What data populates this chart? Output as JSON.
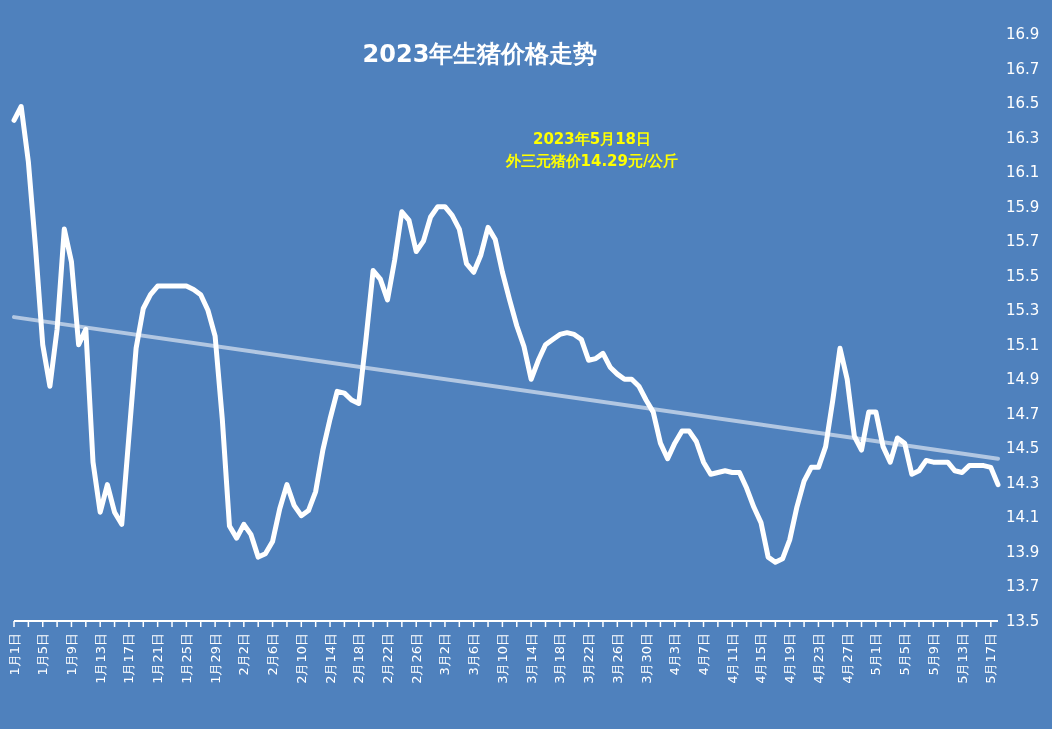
{
  "chart_data": {
    "type": "line",
    "title": "2023年生猪价格走势",
    "annotations": [
      "2023年5月18日",
      "外三元猪价14.29元/公斤"
    ],
    "x": [
      "--01-01",
      "--01-02",
      "--01-03",
      "--01-04",
      "--01-05",
      "--01-06",
      "--01-07",
      "--01-08",
      "--01-09",
      "--01-10",
      "--01-11",
      "--01-12",
      "--01-13",
      "--01-14",
      "--01-15",
      "--01-16",
      "--01-17",
      "--01-18",
      "--01-19",
      "--01-20",
      "--01-21",
      "--01-22",
      "--01-23",
      "--01-24",
      "--01-25",
      "--01-26",
      "--01-27",
      "--01-28",
      "--01-29",
      "--01-30",
      "--01-31",
      "--02-01",
      "--02-02",
      "--02-03",
      "--02-04",
      "--02-05",
      "--02-06",
      "--02-07",
      "--02-08",
      "--02-09",
      "--02-10",
      "--02-11",
      "--02-12",
      "--02-13",
      "--02-14",
      "--02-15",
      "--02-16",
      "--02-17",
      "--02-18",
      "--02-19",
      "--02-20",
      "--02-21",
      "--02-22",
      "--02-23",
      "--02-24",
      "--02-25",
      "--02-26",
      "--02-27",
      "--02-28",
      "--03-01",
      "--03-02",
      "--03-03",
      "--03-04",
      "--03-05",
      "--03-06",
      "--03-07",
      "--03-08",
      "--03-09",
      "--03-10",
      "--03-11",
      "--03-12",
      "--03-13",
      "--03-14",
      "--03-15",
      "--03-16",
      "--03-17",
      "--03-18",
      "--03-19",
      "--03-20",
      "--03-21",
      "--03-22",
      "--03-23",
      "--03-24",
      "--03-25",
      "--03-26",
      "--03-27",
      "--03-28",
      "--03-29",
      "--03-30",
      "--03-31",
      "--04-01",
      "--04-02",
      "--04-03",
      "--04-04",
      "--04-05",
      "--04-06",
      "--04-07",
      "--04-08",
      "--04-09",
      "--04-10",
      "--04-11",
      "--04-12",
      "--04-13",
      "--04-14",
      "--04-15",
      "--04-16",
      "--04-17",
      "--04-18",
      "--04-19",
      "--04-20",
      "--04-21",
      "--04-22",
      "--04-23",
      "--04-24",
      "--04-25",
      "--04-26",
      "--04-27",
      "--04-28",
      "--04-29",
      "--04-30",
      "--05-01",
      "--05-02",
      "--05-03",
      "--05-04",
      "--05-05",
      "--05-06",
      "--05-07",
      "--05-08",
      "--05-09",
      "--05-10",
      "--05-11",
      "--05-12",
      "--05-13",
      "--05-14",
      "--05-15",
      "--05-16",
      "--05-17",
      "--05-18"
    ],
    "xlim": [
      "--01-01",
      "--05-18"
    ],
    "xticks": [
      {
        "value": "--01-01",
        "label": "1月1日"
      },
      {
        "value": "--01-03",
        "label": null
      },
      {
        "value": "--01-05",
        "label": "1月5日"
      },
      {
        "value": "--01-07",
        "label": null
      },
      {
        "value": "--01-09",
        "label": "1月9日"
      },
      {
        "value": "--01-11",
        "label": null
      },
      {
        "value": "--01-13",
        "label": "1月13日"
      },
      {
        "value": "--01-15",
        "label": null
      },
      {
        "value": "--01-17",
        "label": "1月17日"
      },
      {
        "value": "--01-19",
        "label": null
      },
      {
        "value": "--01-21",
        "label": "1月21日"
      },
      {
        "value": "--01-23",
        "label": null
      },
      {
        "value": "--01-25",
        "label": "1月25日"
      },
      {
        "value": "--01-27",
        "label": null
      },
      {
        "value": "--01-29",
        "label": "1月29日"
      },
      {
        "value": "--01-31",
        "label": null
      },
      {
        "value": "--02-02",
        "label": "2月2日"
      },
      {
        "value": "--02-04",
        "label": null
      },
      {
        "value": "--02-06",
        "label": "2月6日"
      },
      {
        "value": "--02-08",
        "label": null
      },
      {
        "value": "--02-10",
        "label": "2月10日"
      },
      {
        "value": "--02-12",
        "label": null
      },
      {
        "value": "--02-14",
        "label": "2月14日"
      },
      {
        "value": "--02-16",
        "label": null
      },
      {
        "value": "--02-18",
        "label": "2月18日"
      },
      {
        "value": "--02-20",
        "label": null
      },
      {
        "value": "--02-22",
        "label": "2月22日"
      },
      {
        "value": "--02-24",
        "label": null
      },
      {
        "value": "--02-26",
        "label": "2月26日"
      },
      {
        "value": "--02-28",
        "label": null
      },
      {
        "value": "--03-02",
        "label": "3月2日"
      },
      {
        "value": "--03-04",
        "label": null
      },
      {
        "value": "--03-06",
        "label": "3月6日"
      },
      {
        "value": "--03-08",
        "label": null
      },
      {
        "value": "--03-10",
        "label": "3月10日"
      },
      {
        "value": "--03-12",
        "label": null
      },
      {
        "value": "--03-14",
        "label": "3月14日"
      },
      {
        "value": "--03-16",
        "label": null
      },
      {
        "value": "--03-18",
        "label": "3月18日"
      },
      {
        "value": "--03-20",
        "label": null
      },
      {
        "value": "--03-22",
        "label": "3月22日"
      },
      {
        "value": "--03-24",
        "label": null
      },
      {
        "value": "--03-26",
        "label": "3月26日"
      },
      {
        "value": "--03-28",
        "label": null
      },
      {
        "value": "--03-30",
        "label": "3月30日"
      },
      {
        "value": "--04-01",
        "label": null
      },
      {
        "value": "--04-03",
        "label": "4月3日"
      },
      {
        "value": "--04-05",
        "label": null
      },
      {
        "value": "--04-07",
        "label": "4月7日"
      },
      {
        "value": "--04-09",
        "label": null
      },
      {
        "value": "--04-11",
        "label": "4月11日"
      },
      {
        "value": "--04-13",
        "label": null
      },
      {
        "value": "--04-15",
        "label": "4月15日"
      },
      {
        "value": "--04-17",
        "label": null
      },
      {
        "value": "--04-19",
        "label": "4月19日"
      },
      {
        "value": "--04-21",
        "label": null
      },
      {
        "value": "--04-23",
        "label": "4月23日"
      },
      {
        "value": "--04-25",
        "label": null
      },
      {
        "value": "--04-27",
        "label": "4月27日"
      },
      {
        "value": "--04-29",
        "label": null
      },
      {
        "value": "--05-01",
        "label": "5月1日"
      },
      {
        "value": "--05-03",
        "label": null
      },
      {
        "value": "--05-05",
        "label": "5月5日"
      },
      {
        "value": "--05-07",
        "label": null
      },
      {
        "value": "--05-09",
        "label": "5月9日"
      },
      {
        "value": "--05-11",
        "label": null
      },
      {
        "value": "--05-13",
        "label": "5月13日"
      },
      {
        "value": "--05-15",
        "label": null
      },
      {
        "value": "--05-17",
        "label": "5月17日"
      }
    ],
    "ylim": [
      13.5,
      16.9
    ],
    "yticks": [
      13.5,
      13.7,
      13.9,
      14.1,
      14.3,
      14.5,
      14.7,
      14.9,
      15.1,
      15.3,
      15.5,
      15.7,
      15.9,
      16.1,
      16.3,
      16.5,
      16.7,
      16.9
    ],
    "series": [
      {
        "color": "#ffffff",
        "values": [
          16.4,
          16.48,
          16.16,
          15.66,
          15.1,
          14.86,
          15.19,
          15.77,
          15.58,
          15.1,
          15.19,
          14.42,
          14.13,
          14.29,
          14.13,
          14.06,
          14.57,
          15.08,
          15.31,
          15.39,
          15.44,
          15.44,
          15.44,
          15.44,
          15.44,
          15.42,
          15.39,
          15.3,
          15.15,
          14.67,
          14.05,
          13.98,
          14.06,
          14.0,
          13.87,
          13.89,
          13.96,
          14.15,
          14.29,
          14.17,
          14.11,
          14.14,
          14.25,
          14.49,
          14.67,
          14.83,
          14.82,
          14.78,
          14.76,
          15.13,
          15.53,
          15.48,
          15.36,
          15.59,
          15.87,
          15.82,
          15.64,
          15.7,
          15.84,
          15.9,
          15.9,
          15.85,
          15.77,
          15.57,
          15.52,
          15.62,
          15.78,
          15.71,
          15.52,
          15.36,
          15.21,
          15.09,
          14.9,
          15.01,
          15.1,
          15.13,
          15.16,
          15.17,
          15.16,
          15.13,
          15.01,
          15.02,
          15.05,
          14.97,
          14.93,
          14.9,
          14.9,
          14.86,
          14.78,
          14.71,
          14.53,
          14.44,
          14.53,
          14.6,
          14.6,
          14.54,
          14.42,
          14.35,
          14.36,
          14.37,
          14.36,
          14.36,
          14.27,
          14.16,
          14.07,
          13.87,
          13.84,
          13.86,
          13.97,
          14.16,
          14.31,
          14.39,
          14.39,
          14.51,
          14.78,
          15.08,
          14.9,
          14.57,
          14.49,
          14.71,
          14.71,
          14.51,
          14.42,
          14.56,
          14.53,
          14.35,
          14.37,
          14.43,
          14.42,
          14.42,
          14.42,
          14.37,
          14.36,
          14.4,
          14.4,
          14.4,
          14.39,
          14.29
        ]
      },
      {
        "color": "#c3d3e9",
        "x": [
          "--01-01",
          "--05-18"
        ],
        "values": [
          15.26,
          14.44
        ]
      }
    ]
  }
}
